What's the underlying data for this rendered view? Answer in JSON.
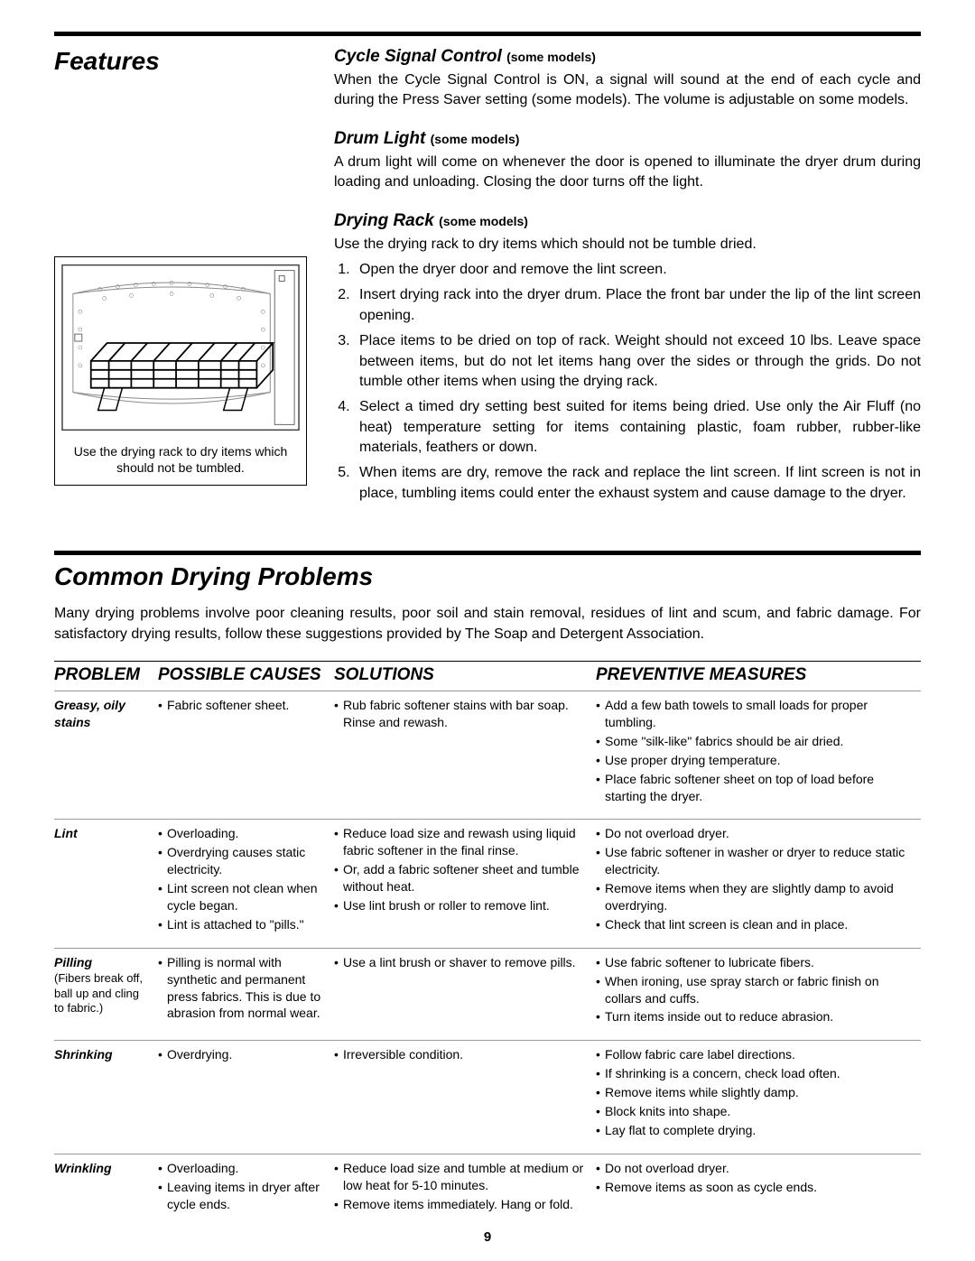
{
  "page_number": "9",
  "features": {
    "title": "Features",
    "items": [
      {
        "heading": "Cycle Signal Control",
        "note": "(some models)",
        "body": "When the Cycle Signal Control is ON, a signal will sound at the end of each cycle and during the Press Saver setting (some models). The volume is adjustable on some models."
      },
      {
        "heading": "Drum Light",
        "note": "(some models)",
        "body": "A drum light will come on whenever the door is opened to illuminate the dryer drum during loading and unloading. Closing the door turns off the light."
      },
      {
        "heading": "Drying Rack",
        "note": "(some models)",
        "intro": "Use the drying rack to dry items which should not be tumble dried.",
        "steps": [
          "Open the dryer door and remove the lint screen.",
          "Insert drying rack into the dryer drum. Place the front bar under the lip of the lint screen opening.",
          "Place items to be dried on top of rack. Weight should not exceed 10 lbs. Leave space between items, but do not let items hang over the sides or through the grids. Do not tumble other items when using the drying rack.",
          "Select a timed dry setting best suited for items being dried. Use only the Air Fluff (no heat) temperature setting for items containing plastic, foam rubber, rubber-like materials, feathers or down.",
          "When items are dry, remove the rack and replace the lint screen. If lint screen is not in place, tumbling items could enter the exhaust system and cause damage to the dryer."
        ]
      }
    ],
    "figure_caption": "Use the drying rack to dry items which should not be tumbled."
  },
  "common_problems": {
    "title": "Common Drying Problems",
    "intro": "Many drying problems involve poor cleaning results, poor soil and stain removal, residues of lint and scum, and fabric damage. For satisfactory drying results, follow these suggestions provided by The Soap and Detergent Association.",
    "headers": [
      "PROBLEM",
      "POSSIBLE CAUSES",
      "SOLUTIONS",
      "PREVENTIVE MEASURES"
    ],
    "rows": [
      {
        "problem": "Greasy, oily stains",
        "causes": [
          "Fabric softener sheet."
        ],
        "solutions": [
          "Rub fabric softener stains with bar soap. Rinse and rewash."
        ],
        "preventive": [
          "Add a few bath towels to small loads  for proper tumbling.",
          "Some \"silk-like\" fabrics should be air dried.",
          "Use proper drying temperature.",
          "Place fabric softener sheet on top of load before starting the dryer."
        ]
      },
      {
        "problem": "Lint",
        "causes": [
          "Overloading.",
          "Overdrying causes static electricity.",
          "Lint screen not clean when cycle began.",
          "Lint is attached to \"pills.\""
        ],
        "solutions": [
          "Reduce load size and rewash using liquid fabric softener in the final rinse.",
          "Or, add a fabric softener sheet and tumble without heat.",
          "Use lint brush or roller to remove lint."
        ],
        "preventive": [
          "Do not overload dryer.",
          "Use fabric softener in washer or dryer to reduce static electricity.",
          "Remove items when they are slightly damp to avoid overdrying.",
          "Check that lint screen is clean and in place."
        ]
      },
      {
        "problem": "Pilling",
        "problem_sub": "(Fibers break off, ball up and cling to fabric.)",
        "causes": [
          "Pilling is normal with synthetic and permanent press fabrics. This is due to abrasion from normal wear."
        ],
        "solutions": [
          "Use a lint brush or shaver to remove pills."
        ],
        "preventive": [
          "Use fabric softener to lubricate fibers.",
          "When ironing, use spray starch or fabric finish on collars  and cuffs.",
          "Turn items inside out to reduce abrasion."
        ]
      },
      {
        "problem": "Shrinking",
        "causes": [
          "Overdrying."
        ],
        "solutions": [
          "Irreversible condition."
        ],
        "preventive": [
          "Follow fabric care label directions.",
          "If shrinking is a concern, check load often.",
          "Remove items while slightly damp.",
          "Block knits into shape.",
          "Lay flat to complete drying."
        ]
      },
      {
        "problem": "Wrinkling",
        "causes": [
          "Overloading.",
          "Leaving items in dryer after cycle ends."
        ],
        "solutions": [
          "Reduce load size and tumble at medium or low heat for 5-10 minutes.",
          "Remove items immediately. Hang or fold."
        ],
        "preventive": [
          "Do not overload dryer.",
          "Remove items as soon as cycle ends."
        ]
      }
    ]
  }
}
